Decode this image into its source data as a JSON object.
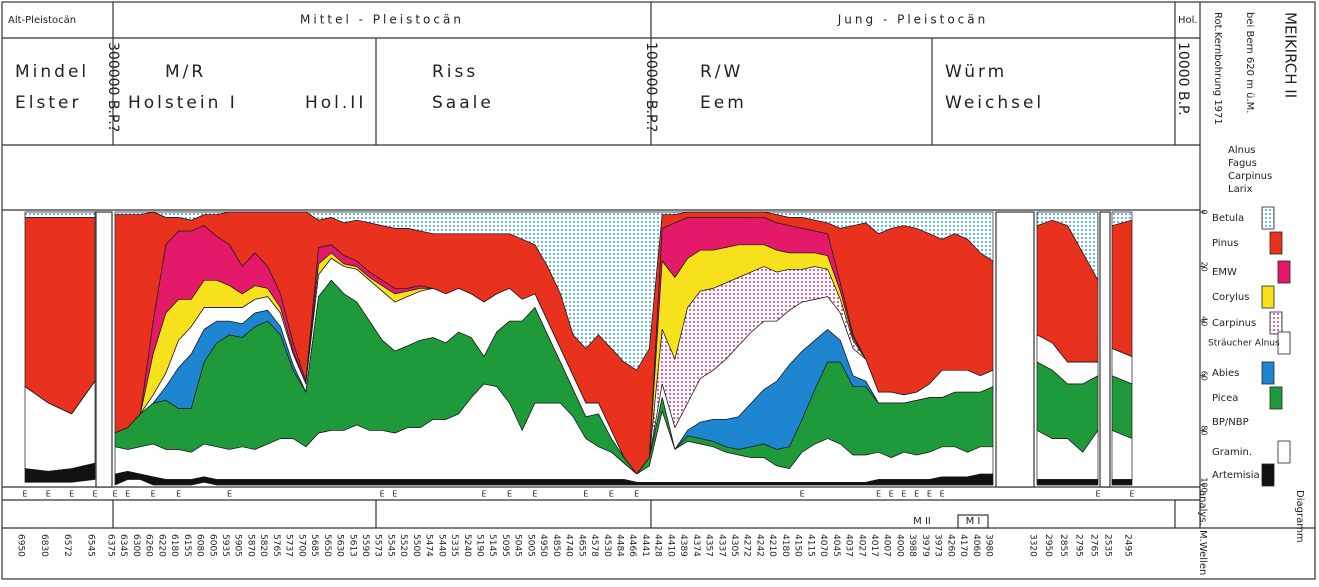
{
  "header": {
    "periods": [
      "Alt-Pleistocän",
      "Mittel - Pleistocän",
      "Jung - Pleistocän",
      "Hol."
    ],
    "stages": [
      "Mindel",
      "Elster",
      "M/R",
      "Holstein I",
      "Hol.II",
      "Riss",
      "Saale",
      "R/W",
      "Eem",
      "Würm",
      "Weichsel"
    ],
    "dates": [
      "300000 B.P.?",
      "100000 B.P.?",
      "10000 B.P."
    ]
  },
  "site": {
    "title": "MEIKIRCH II",
    "location": "bei Bern 620 m ü.M.",
    "core": "Rot.Kernbohrung 1971"
  },
  "upper_legend": [
    "Alnus",
    "Fagus",
    "Carpinus",
    "Larix"
  ],
  "footer": {
    "analysed": "analys.",
    "waves": "M.Wellen",
    "diagram": "Diagramm",
    "zones": [
      "M II",
      "M I"
    ]
  },
  "chart_data": {
    "type": "area",
    "stacked": true,
    "y_inverted": true,
    "categories": [
      "6950",
      "6830",
      "6572",
      "6545",
      "6375",
      "6345",
      "6300",
      "6260",
      "6220",
      "6180",
      "6155",
      "6080",
      "6005",
      "5935",
      "5905",
      "5870",
      "5820",
      "5765",
      "5737",
      "5700",
      "5685",
      "5650",
      "5630",
      "5613",
      "5590",
      "5573",
      "5545",
      "5520",
      "5500",
      "5474",
      "5440",
      "5335",
      "5240",
      "5190",
      "5145",
      "5095",
      "5045",
      "5005",
      "4950",
      "4850",
      "4740",
      "4655",
      "4578",
      "4530",
      "4484",
      "4466",
      "4441",
      "4428",
      "4410",
      "4389",
      "4374",
      "4357",
      "4337",
      "4305",
      "4272",
      "4242",
      "4210",
      "4180",
      "4150",
      "4115",
      "4070",
      "4045",
      "4037",
      "4027",
      "4017",
      "4007",
      "4000",
      "3988",
      "3979",
      "3973",
      "4260",
      "4170",
      "4060",
      "3980",
      "3320",
      "2950",
      "2855",
      "2795",
      "2765",
      "2535",
      "2495"
    ],
    "sample_flags": [
      "E",
      "E",
      "E",
      "E",
      "E",
      "E",
      null,
      "E",
      null,
      "E",
      null,
      null,
      null,
      "E",
      null,
      null,
      null,
      null,
      null,
      null,
      null,
      null,
      null,
      null,
      null,
      "E",
      "E",
      null,
      null,
      null,
      null,
      null,
      null,
      "E",
      null,
      "E",
      null,
      "E",
      null,
      null,
      null,
      "E",
      null,
      "E",
      null,
      "E",
      null,
      null,
      null,
      null,
      null,
      null,
      null,
      null,
      null,
      null,
      null,
      null,
      "E",
      null,
      null,
      null,
      null,
      null,
      "E",
      "E",
      "E",
      "E",
      "E",
      "E",
      null,
      null,
      null,
      null,
      null,
      null,
      null,
      null,
      "E",
      null,
      "E"
    ],
    "ylim": [
      0,
      100
    ],
    "yticks": [
      0,
      20,
      40,
      60,
      80,
      100
    ],
    "bp_nbp_label": "BP/NBP",
    "series": [
      {
        "name": "Betula",
        "color": "#3aa6d6",
        "pattern": "dotted",
        "values": [
          2,
          2,
          2,
          2,
          1,
          1,
          1,
          0,
          2,
          2,
          3,
          1,
          1,
          0,
          0,
          0,
          0,
          0,
          0,
          0,
          3,
          2,
          4,
          3,
          4,
          5,
          6,
          6,
          7,
          8,
          8,
          8,
          8,
          8,
          8,
          8,
          10,
          12,
          20,
          30,
          45,
          50,
          45,
          50,
          55,
          58,
          50,
          1,
          1,
          0,
          0,
          0,
          0,
          0,
          0,
          0,
          1,
          2,
          2,
          3,
          4,
          6,
          5,
          4,
          8,
          6,
          5,
          6,
          8,
          10,
          8,
          10,
          15,
          18,
          5,
          3,
          5,
          15,
          25,
          5,
          3
        ]
      },
      {
        "name": "Pinus",
        "color": "#e8321e",
        "values": [
          62,
          68,
          72,
          60,
          80,
          78,
          73,
          40,
          10,
          5,
          4,
          4,
          8,
          12,
          20,
          15,
          20,
          30,
          48,
          62,
          10,
          10,
          12,
          15,
          18,
          20,
          22,
          22,
          20,
          20,
          22,
          20,
          22,
          25,
          22,
          20,
          22,
          18,
          20,
          20,
          15,
          20,
          25,
          30,
          35,
          38,
          40,
          5,
          3,
          2,
          2,
          2,
          2,
          2,
          2,
          2,
          3,
          3,
          4,
          4,
          4,
          20,
          40,
          50,
          58,
          60,
          62,
          60,
          55,
          48,
          50,
          48,
          45,
          40,
          40,
          45,
          50,
          40,
          30,
          45,
          50
        ]
      },
      {
        "name": "EMW",
        "color": "#e5196a",
        "values": [
          0,
          0,
          0,
          0,
          0,
          0,
          0,
          12,
          25,
          25,
          25,
          20,
          16,
          15,
          10,
          12,
          8,
          5,
          3,
          1,
          6,
          3,
          3,
          2,
          2,
          2,
          2,
          1,
          1,
          0,
          0,
          0,
          0,
          0,
          0,
          0,
          0,
          0,
          0,
          0,
          0,
          0,
          0,
          0,
          0,
          0,
          0,
          12,
          20,
          15,
          12,
          12,
          11,
          10,
          10,
          10,
          10,
          10,
          9,
          8,
          8,
          3,
          1,
          0,
          0,
          0,
          0,
          0,
          0,
          0,
          0,
          0,
          0,
          0,
          0,
          0,
          0,
          0,
          0,
          0,
          0
        ]
      },
      {
        "name": "Corylus",
        "color": "#f7e01c",
        "values": [
          0,
          0,
          0,
          0,
          0,
          0,
          0,
          15,
          22,
          15,
          10,
          10,
          10,
          8,
          5,
          5,
          3,
          2,
          1,
          0,
          4,
          2,
          1,
          1,
          1,
          2,
          3,
          2,
          1,
          0,
          0,
          0,
          0,
          0,
          0,
          0,
          0,
          0,
          0,
          0,
          0,
          0,
          0,
          0,
          0,
          0,
          0,
          25,
          30,
          18,
          15,
          14,
          13,
          12,
          10,
          8,
          8,
          6,
          6,
          5,
          5,
          3,
          1,
          0,
          0,
          0,
          0,
          0,
          0,
          0,
          0,
          0,
          0,
          0,
          0,
          0,
          0,
          0,
          0,
          0,
          0
        ]
      },
      {
        "name": "Carpinus",
        "color": "#e0308a",
        "pattern": "dotted",
        "values": [
          0,
          0,
          0,
          0,
          0,
          0,
          0,
          0,
          0,
          0,
          0,
          0,
          0,
          0,
          0,
          0,
          0,
          0,
          0,
          0,
          0,
          0,
          0,
          0,
          0,
          0,
          0,
          0,
          0,
          0,
          0,
          0,
          0,
          0,
          0,
          0,
          0,
          0,
          0,
          0,
          0,
          0,
          0,
          0,
          0,
          0,
          0,
          20,
          25,
          35,
          32,
          30,
          28,
          25,
          22,
          20,
          18,
          15,
          12,
          12,
          10,
          5,
          3,
          0,
          0,
          0,
          0,
          0,
          0,
          0,
          0,
          0,
          0,
          0,
          0,
          0,
          0,
          0,
          0,
          0,
          0
        ]
      },
      {
        "name": "Sträucher Alnus",
        "color": "#ffffff",
        "values": [
          0,
          0,
          0,
          0,
          0,
          0,
          0,
          3,
          5,
          10,
          10,
          8,
          5,
          5,
          6,
          5,
          5,
          5,
          4,
          3,
          8,
          8,
          10,
          12,
          15,
          18,
          18,
          18,
          18,
          18,
          18,
          16,
          16,
          20,
          14,
          12,
          8,
          5,
          5,
          5,
          5,
          5,
          4,
          3,
          0,
          0,
          0,
          5,
          8,
          10,
          16,
          18,
          22,
          26,
          26,
          25,
          22,
          20,
          18,
          15,
          12,
          10,
          10,
          8,
          4,
          4,
          3,
          3,
          5,
          10,
          8,
          8,
          6,
          6,
          10,
          10,
          8,
          8,
          5,
          10,
          10
        ]
      },
      {
        "name": "Abies",
        "color": "#1e86d0",
        "values": [
          0,
          0,
          0,
          0,
          0,
          0,
          0,
          0,
          5,
          15,
          20,
          12,
          8,
          5,
          5,
          5,
          4,
          3,
          2,
          0,
          0,
          0,
          0,
          0,
          0,
          0,
          0,
          0,
          0,
          0,
          0,
          0,
          0,
          0,
          0,
          0,
          0,
          0,
          0,
          0,
          0,
          0,
          0,
          0,
          0,
          0,
          0,
          0,
          0,
          2,
          6,
          8,
          10,
          12,
          16,
          20,
          25,
          30,
          25,
          18,
          12,
          8,
          4,
          2,
          0,
          0,
          0,
          0,
          0,
          0,
          0,
          0,
          0,
          0,
          0,
          0,
          0,
          0,
          0,
          0,
          0
        ]
      },
      {
        "name": "Picea",
        "color": "#1f9a3a",
        "values": [
          0,
          0,
          0,
          0,
          5,
          8,
          12,
          15,
          18,
          15,
          16,
          30,
          38,
          42,
          40,
          45,
          45,
          38,
          25,
          20,
          50,
          55,
          50,
          45,
          40,
          33,
          30,
          30,
          32,
          30,
          28,
          30,
          22,
          10,
          20,
          30,
          40,
          35,
          25,
          15,
          10,
          8,
          12,
          5,
          2,
          0,
          3,
          5,
          0,
          2,
          2,
          2,
          2,
          2,
          4,
          5,
          6,
          8,
          12,
          20,
          28,
          30,
          25,
          25,
          18,
          20,
          18,
          20,
          20,
          18,
          20,
          22,
          20,
          22,
          25,
          25,
          20,
          25,
          20,
          20,
          20
        ]
      },
      {
        "name": "Gramin.",
        "color": "#ffffff",
        "values": [
          30,
          25,
          20,
          30,
          10,
          8,
          10,
          12,
          11,
          11,
          10,
          12,
          12,
          11,
          12,
          11,
          13,
          15,
          15,
          12,
          17,
          18,
          18,
          20,
          18,
          18,
          17,
          19,
          19,
          22,
          22,
          24,
          30,
          35,
          34,
          28,
          18,
          28,
          28,
          28,
          23,
          15,
          12,
          10,
          6,
          3,
          6,
          26,
          12,
          15,
          14,
          13,
          11,
          10,
          9,
          9,
          6,
          5,
          11,
          14,
          16,
          14,
          10,
          10,
          10,
          8,
          10,
          9,
          10,
          11,
          11,
          9,
          10,
          10,
          18,
          15,
          15,
          10,
          18,
          18,
          15
        ]
      },
      {
        "name": "Artemisia",
        "color": "#111111",
        "values": [
          5,
          4,
          5,
          6,
          4,
          3,
          2,
          3,
          2,
          2,
          2,
          2,
          2,
          2,
          2,
          2,
          2,
          2,
          2,
          2,
          2,
          2,
          2,
          2,
          2,
          2,
          2,
          2,
          2,
          2,
          2,
          2,
          2,
          2,
          2,
          2,
          2,
          2,
          2,
          2,
          2,
          2,
          2,
          2,
          2,
          1,
          1,
          1,
          1,
          1,
          1,
          1,
          1,
          1,
          1,
          1,
          1,
          1,
          1,
          1,
          1,
          1,
          1,
          1,
          2,
          2,
          2,
          2,
          2,
          3,
          3,
          3,
          4,
          4,
          2,
          2,
          2,
          2,
          2,
          2,
          2
        ]
      }
    ]
  }
}
